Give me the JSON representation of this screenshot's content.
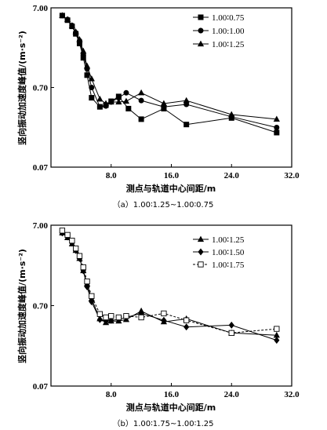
{
  "chart_data": [
    {
      "type": "line",
      "caption": "（a）1.00∶1.25~1.00∶0.75",
      "xlabel": "测点与轨道中心间距/m",
      "ylabel": "竖向振动加速度峰值/(m·s⁻²)",
      "xlim": [
        0,
        32
      ],
      "ylim": [
        0.07,
        7.0
      ],
      "yscale": "log",
      "xticks": [
        "8.0",
        "16.0",
        "24.0",
        "32.0"
      ],
      "yticks": [
        "0.07",
        "0.70",
        "7.00"
      ],
      "legend_position": "top-right",
      "series": [
        {
          "name": "1.00∶0.75",
          "marker": "square-filled",
          "dash": false,
          "x": [
            1.5,
            2.2,
            2.8,
            3.3,
            3.8,
            4.3,
            4.8,
            5.4,
            6.5,
            7.3,
            8.0,
            9.0,
            10.3,
            12.0,
            15.0,
            18.0,
            24.0,
            30.0
          ],
          "y": [
            5.6,
            4.9,
            4.1,
            3.3,
            2.5,
            1.65,
            1.0,
            0.52,
            0.4,
            0.42,
            0.47,
            0.54,
            0.38,
            0.28,
            0.38,
            0.24,
            0.29,
            0.19
          ]
        },
        {
          "name": "1.00:1.00",
          "marker": "circle-filled",
          "dash": false,
          "x": [
            1.5,
            2.2,
            2.8,
            3.3,
            3.8,
            4.3,
            4.8,
            5.4,
            6.5,
            7.3,
            8.0,
            9.0,
            10.0,
            12.0,
            15.0,
            18.0,
            24.0,
            30.0
          ],
          "y": [
            5.6,
            5.0,
            4.2,
            3.4,
            2.7,
            1.8,
            1.2,
            0.7,
            0.4,
            0.41,
            0.46,
            0.52,
            0.6,
            0.48,
            0.4,
            0.43,
            0.3,
            0.22
          ]
        },
        {
          "name": "1.00∶1.25",
          "marker": "triangle-filled",
          "dash": false,
          "x": [
            1.5,
            2.2,
            2.8,
            3.3,
            3.8,
            4.3,
            4.8,
            5.4,
            6.5,
            7.3,
            8.0,
            9.0,
            10.0,
            12.0,
            15.0,
            18.0,
            24.0,
            30.0
          ],
          "y": [
            5.6,
            5.0,
            4.2,
            3.5,
            2.8,
            2.0,
            1.3,
            0.9,
            0.5,
            0.44,
            0.46,
            0.46,
            0.47,
            0.6,
            0.44,
            0.48,
            0.32,
            0.28
          ]
        }
      ]
    },
    {
      "type": "line",
      "caption": "（b）1.00∶1.75~1.00∶1.25",
      "xlabel": "测点与轨道中心间距/m",
      "ylabel": "竖向振动加速度峰值/(m·s⁻²)",
      "xlim": [
        0,
        32
      ],
      "ylim": [
        0.07,
        7.0
      ],
      "yscale": "log",
      "xticks": [
        "8.0",
        "16.0",
        "24.0",
        "32.0"
      ],
      "yticks": [
        "0.07",
        "0.70",
        "7.00"
      ],
      "legend_position": "top-right",
      "series": [
        {
          "name": "1.00∶1.25",
          "marker": "triangle-filled",
          "dash": false,
          "x": [
            1.5,
            2.2,
            2.8,
            3.3,
            3.8,
            4.3,
            4.8,
            5.4,
            6.5,
            7.3,
            8.0,
            9.0,
            10.0,
            12.0,
            15.0,
            18.0,
            24.0,
            30.0
          ],
          "y": [
            5.6,
            4.9,
            4.1,
            3.4,
            2.7,
            1.9,
            1.3,
            0.85,
            0.48,
            0.43,
            0.45,
            0.45,
            0.47,
            0.6,
            0.44,
            0.48,
            0.32,
            0.3
          ]
        },
        {
          "name": "1.00∶1.50",
          "marker": "diamond-filled",
          "dash": false,
          "x": [
            1.5,
            2.2,
            2.8,
            3.3,
            3.8,
            4.3,
            4.8,
            5.4,
            6.5,
            7.3,
            8.0,
            9.0,
            10.0,
            12.0,
            15.0,
            18.0,
            24.0,
            30.0
          ],
          "y": [
            5.6,
            5.0,
            4.2,
            3.4,
            2.7,
            1.9,
            1.2,
            0.78,
            0.47,
            0.45,
            0.46,
            0.47,
            0.5,
            0.56,
            0.46,
            0.38,
            0.4,
            0.26
          ]
        },
        {
          "name": "1.00∶1.75",
          "marker": "square-open",
          "dash": true,
          "x": [
            1.5,
            2.2,
            2.8,
            3.3,
            3.8,
            4.3,
            4.8,
            5.4,
            6.5,
            7.3,
            8.0,
            9.0,
            10.0,
            12.0,
            15.0,
            18.0,
            24.0,
            30.0
          ],
          "y": [
            6.0,
            5.3,
            4.5,
            3.6,
            2.9,
            2.1,
            1.4,
            0.92,
            0.55,
            0.5,
            0.52,
            0.5,
            0.52,
            0.5,
            0.56,
            0.46,
            0.32,
            0.36
          ]
        }
      ]
    }
  ]
}
